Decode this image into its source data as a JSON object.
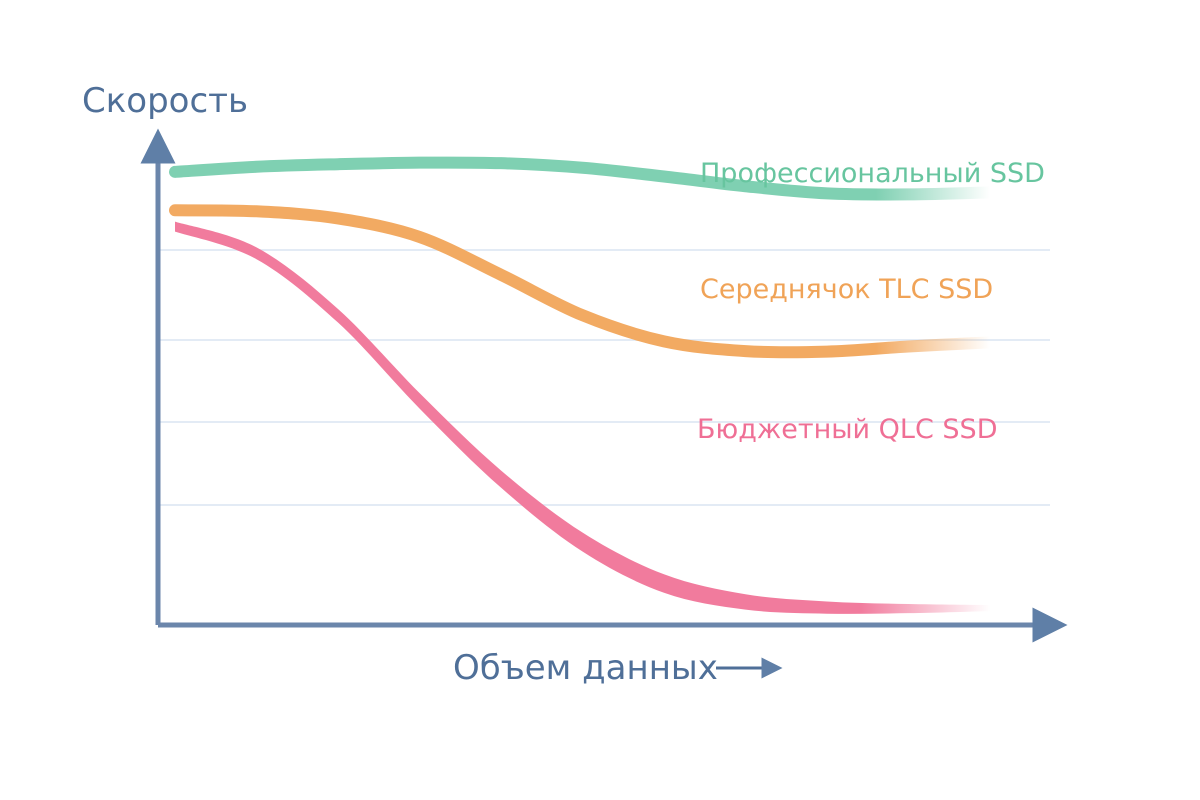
{
  "chart_data": {
    "type": "line",
    "title": "",
    "ylabel": "Скорость",
    "xlabel": "Объем данных",
    "x_range": [
      0,
      100
    ],
    "y_range": [
      0,
      100
    ],
    "grid": true,
    "colors": {
      "axis": "#6b86ab",
      "grid": "#e3ebf5",
      "label": "#4f6f98"
    },
    "series": [
      {
        "name": "Профессиональный SSD",
        "color": "#7fd0b2",
        "x": [
          0,
          10,
          20,
          30,
          40,
          50,
          60,
          70,
          80,
          90,
          100
        ],
        "y": [
          88.5,
          89.5,
          90,
          90.3,
          90.2,
          89.3,
          87.6,
          85.7,
          84.3,
          84.1,
          84.5
        ]
      },
      {
        "name": "Середнячок TLC SSD",
        "color": "#f2aa62",
        "x": [
          0,
          10,
          20,
          30,
          40,
          50,
          60,
          70,
          80,
          90,
          100
        ],
        "y": [
          81,
          80.8,
          79.4,
          75.8,
          68.4,
          60.5,
          55.4,
          53.5,
          53.4,
          54.4,
          55.2
        ]
      },
      {
        "name": "Бюджетный QLC SSD",
        "color": "#f17b9d",
        "x": [
          0,
          10,
          20,
          30,
          40,
          50,
          60,
          70,
          80,
          90,
          100
        ],
        "y": [
          77.8,
          72.6,
          60.4,
          43.8,
          28.5,
          16.2,
          8.1,
          4.5,
          3.4,
          3.2,
          3.3
        ]
      }
    ]
  }
}
